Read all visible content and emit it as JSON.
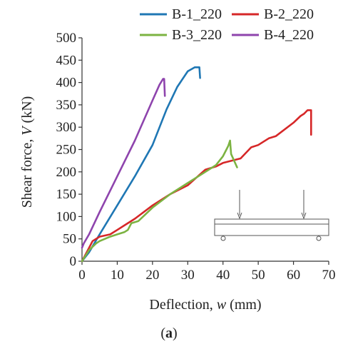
{
  "caption": {
    "open": "(",
    "label": "a",
    "close": ")"
  },
  "chart_data": {
    "type": "line",
    "xlabel": "Deflection, w (mm)",
    "xlabel_prefix": "Deflection, ",
    "xlabel_var": "w",
    "xlabel_suffix": " (mm)",
    "ylabel": "Shear force, V (kN)",
    "ylabel_prefix": "Shear force, ",
    "ylabel_var": "V",
    "ylabel_suffix": " (kN)",
    "xlim": [
      0,
      70
    ],
    "ylim": [
      0,
      500
    ],
    "xticks": [
      0,
      10,
      20,
      30,
      40,
      50,
      60,
      70
    ],
    "yticks": [
      0,
      50,
      100,
      150,
      200,
      250,
      300,
      350,
      400,
      450,
      500
    ],
    "grid": false,
    "legend_position": "top",
    "inset": "beam loading schematic (two point loads, two supports)",
    "series": [
      {
        "name": "B-1_220",
        "color": "#1f77b4",
        "x": [
          0,
          2,
          5,
          10,
          15,
          20,
          24,
          27,
          30,
          32,
          33.3,
          33.5
        ],
        "y": [
          0,
          20,
          60,
          125,
          190,
          260,
          340,
          390,
          425,
          434,
          434,
          410
        ]
      },
      {
        "name": "B-2_220",
        "color": "#d62728",
        "x": [
          0,
          2,
          3,
          5,
          8,
          10,
          12,
          15,
          20,
          25,
          30,
          35,
          38,
          40,
          45,
          48,
          50,
          53,
          55,
          60,
          62,
          63,
          64,
          65,
          65
        ],
        "y": [
          0,
          30,
          45,
          55,
          60,
          70,
          80,
          95,
          125,
          150,
          170,
          205,
          212,
          220,
          230,
          255,
          260,
          275,
          280,
          310,
          325,
          330,
          338,
          338,
          283
        ]
      },
      {
        "name": "B-3_220",
        "color": "#7cb342",
        "x": [
          0,
          2,
          4,
          5,
          8,
          10,
          12,
          13,
          14,
          16,
          18,
          20,
          25,
          30,
          35,
          38,
          40,
          41.5,
          42,
          42.3,
          44
        ],
        "y": [
          0,
          25,
          40,
          45,
          55,
          60,
          65,
          70,
          85,
          90,
          105,
          120,
          150,
          175,
          200,
          215,
          235,
          258,
          270,
          240,
          210
        ]
      },
      {
        "name": "B-4_220",
        "color": "#8e44ad",
        "x": [
          0,
          0.5,
          2,
          5,
          10,
          15,
          20,
          22,
          23,
          23.3,
          23.5
        ],
        "y": [
          30,
          40,
          60,
          110,
          190,
          270,
          360,
          395,
          408,
          408,
          370
        ]
      }
    ]
  }
}
